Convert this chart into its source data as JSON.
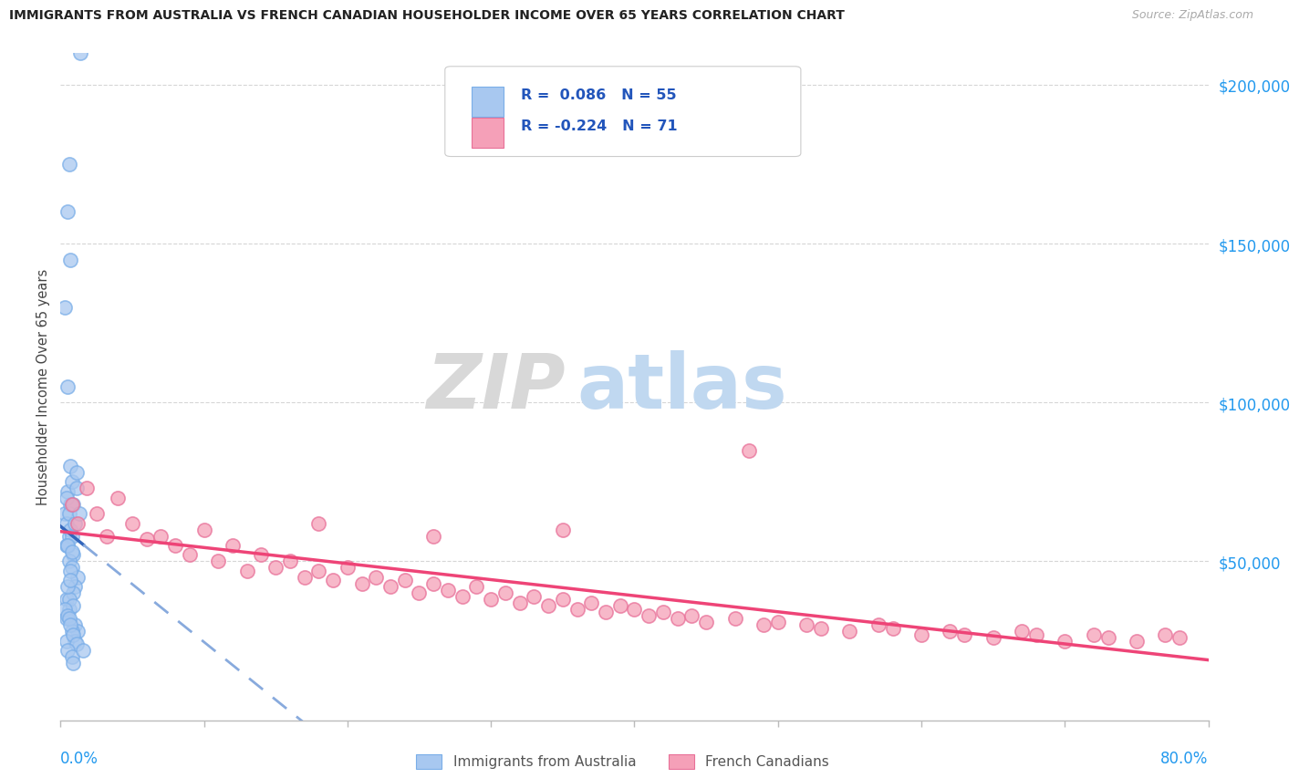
{
  "title": "IMMIGRANTS FROM AUSTRALIA VS FRENCH CANADIAN HOUSEHOLDER INCOME OVER 65 YEARS CORRELATION CHART",
  "source": "Source: ZipAtlas.com",
  "ylabel": "Householder Income Over 65 years",
  "series1_label": "Immigrants from Australia",
  "series1_color": "#a8c8f0",
  "series1_edge": "#7aaee8",
  "series2_label": "French Canadians",
  "series2_color": "#f5a0b8",
  "series2_edge": "#e87098",
  "series1_R": 0.086,
  "series1_N": 55,
  "series2_R": -0.224,
  "series2_N": 71,
  "xmin": 0.0,
  "xmax": 80.0,
  "ymin": 0,
  "ymax": 210000,
  "ytick_vals": [
    50000,
    100000,
    150000,
    200000
  ],
  "ytick_labels": [
    "$50,000",
    "$100,000",
    "$150,000",
    "$200,000"
  ],
  "trend1_color": "#3366bb",
  "trend1_dash_color": "#88aadd",
  "trend2_color": "#ee4477",
  "watermark_zip": "ZIP",
  "watermark_atlas": "atlas",
  "background_color": "#ffffff",
  "legend_color": "#2255bb",
  "series1_x": [
    0.3,
    0.5,
    0.7,
    0.4,
    0.6,
    0.8,
    0.5,
    0.7,
    0.9,
    0.4,
    0.6,
    0.8,
    1.0,
    0.3,
    0.5,
    0.7,
    0.9,
    1.1,
    0.4,
    0.6,
    0.8,
    1.2,
    0.5,
    0.7,
    1.0,
    0.4,
    0.6,
    0.9,
    1.1,
    0.5,
    0.7,
    0.8,
    1.3,
    0.4,
    0.6,
    1.0,
    0.5,
    0.7,
    0.9,
    1.2,
    0.3,
    0.5,
    0.8,
    1.0,
    0.6,
    0.4,
    0.7,
    0.9,
    1.1,
    0.5,
    0.8,
    0.6,
    1.4,
    0.9,
    1.6
  ],
  "series1_y": [
    65000,
    72000,
    68000,
    62000,
    58000,
    75000,
    55000,
    60000,
    52000,
    70000,
    65000,
    58000,
    62000,
    130000,
    105000,
    80000,
    68000,
    73000,
    55000,
    50000,
    48000,
    45000,
    160000,
    145000,
    42000,
    38000,
    35000,
    40000,
    78000,
    55000,
    47000,
    53000,
    65000,
    32000,
    38000,
    30000,
    42000,
    44000,
    36000,
    28000,
    35000,
    33000,
    28000,
    25000,
    32000,
    25000,
    30000,
    27000,
    24000,
    22000,
    20000,
    175000,
    210000,
    18000,
    22000
  ],
  "series2_x": [
    0.8,
    1.2,
    1.8,
    2.5,
    3.2,
    4.0,
    5.0,
    6.0,
    7.0,
    8.0,
    9.0,
    10.0,
    11.0,
    12.0,
    13.0,
    14.0,
    15.0,
    16.0,
    17.0,
    18.0,
    19.0,
    20.0,
    21.0,
    22.0,
    23.0,
    24.0,
    25.0,
    26.0,
    27.0,
    28.0,
    29.0,
    30.0,
    31.0,
    32.0,
    33.0,
    34.0,
    35.0,
    36.0,
    37.0,
    38.0,
    39.0,
    40.0,
    41.0,
    42.0,
    43.0,
    44.0,
    45.0,
    47.0,
    49.0,
    50.0,
    52.0,
    53.0,
    55.0,
    57.0,
    58.0,
    60.0,
    62.0,
    63.0,
    65.0,
    67.0,
    68.0,
    70.0,
    72.0,
    73.0,
    75.0,
    77.0,
    78.0,
    48.0,
    35.0,
    26.0,
    18.0
  ],
  "series2_y": [
    68000,
    62000,
    73000,
    65000,
    58000,
    70000,
    62000,
    57000,
    58000,
    55000,
    52000,
    60000,
    50000,
    55000,
    47000,
    52000,
    48000,
    50000,
    45000,
    47000,
    44000,
    48000,
    43000,
    45000,
    42000,
    44000,
    40000,
    43000,
    41000,
    39000,
    42000,
    38000,
    40000,
    37000,
    39000,
    36000,
    38000,
    35000,
    37000,
    34000,
    36000,
    35000,
    33000,
    34000,
    32000,
    33000,
    31000,
    32000,
    30000,
    31000,
    30000,
    29000,
    28000,
    30000,
    29000,
    27000,
    28000,
    27000,
    26000,
    28000,
    27000,
    25000,
    27000,
    26000,
    25000,
    27000,
    26000,
    85000,
    60000,
    58000,
    62000
  ]
}
